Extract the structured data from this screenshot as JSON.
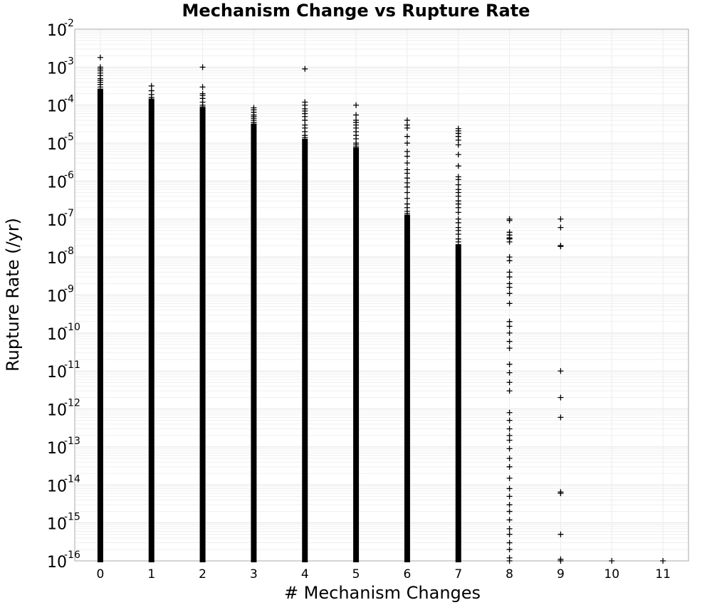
{
  "chart_data": {
    "type": "scatter",
    "title": "Mechanism Change vs Rupture Rate",
    "xlabel": "# Mechanism Changes",
    "ylabel": "Rupture Rate (/yr)",
    "x_ticks": [
      0,
      1,
      2,
      3,
      4,
      5,
      6,
      7,
      8,
      9,
      10,
      11
    ],
    "xlim": [
      -0.5,
      11.5
    ],
    "y_scale": "log",
    "ylim": [
      1e-16,
      0.01
    ],
    "y_tick_exponents": [
      -16,
      -15,
      -14,
      -13,
      -12,
      -11,
      -10,
      -9,
      -8,
      -7,
      -6,
      -5,
      -4,
      -3,
      -2
    ],
    "y_tick_base": "10",
    "marker": "plus",
    "marker_color": "#000000",
    "grid": true,
    "legend": "none",
    "series": [
      {
        "x": 0,
        "dense_range": [
          1e-16,
          0.00025
        ],
        "points": [
          0.0018,
          0.001,
          0.0009,
          0.0008,
          0.0007,
          0.0006,
          0.0005,
          0.00045,
          0.0004,
          0.00035,
          0.0003
        ]
      },
      {
        "x": 1,
        "dense_range": [
          1e-16,
          0.00013
        ],
        "points": [
          0.00032,
          0.00024,
          0.00019,
          0.00016,
          0.000145
        ]
      },
      {
        "x": 2,
        "dense_range": [
          1e-16,
          8e-05
        ],
        "points": [
          0.001,
          0.0003,
          0.0002,
          0.00018,
          0.00015,
          0.00012,
          0.0001,
          9e-05
        ]
      },
      {
        "x": 3,
        "dense_range": [
          1e-16,
          3e-05
        ],
        "points": [
          8.5e-05,
          7.5e-05,
          6.5e-05,
          5.5e-05,
          5e-05,
          4.5e-05,
          4e-05,
          3.5e-05
        ]
      },
      {
        "x": 4,
        "dense_range": [
          1e-16,
          1.2e-05
        ],
        "points": [
          0.0009,
          0.00012,
          0.0001,
          8e-05,
          7e-05,
          6e-05,
          5e-05,
          4e-05,
          3e-05,
          2.5e-05,
          2e-05,
          1.6e-05,
          1.4e-05
        ]
      },
      {
        "x": 5,
        "dense_range": [
          1e-16,
          7e-06
        ],
        "points": [
          0.0001,
          5.5e-05,
          4e-05,
          3.5e-05,
          3e-05,
          2.5e-05,
          2e-05,
          1.6e-05,
          1.3e-05,
          1e-05,
          9e-06,
          8e-06
        ]
      },
      {
        "x": 6,
        "dense_range": [
          1e-16,
          1.2e-07
        ],
        "points": [
          4e-05,
          3e-05,
          2.5e-05,
          1.5e-05,
          1e-05,
          6e-06,
          4.5e-06,
          3e-06,
          2e-06,
          1.6e-06,
          1.2e-06,
          9e-07,
          7e-07,
          5e-07,
          3.5e-07,
          2.5e-07,
          2e-07,
          1.6e-07,
          1.4e-07
        ]
      },
      {
        "x": 7,
        "dense_range": [
          1e-16,
          2e-08
        ],
        "points": [
          2.4e-05,
          2.1e-05,
          1.8e-05,
          1.5e-05,
          1.2e-05,
          9e-06,
          5e-06,
          2.5e-06,
          1.3e-06,
          1.1e-06,
          8e-07,
          6e-07,
          5e-07,
          4e-07,
          3e-07,
          2.5e-07,
          2e-07,
          1.5e-07,
          1e-07,
          8e-08,
          6e-08,
          5e-08,
          4e-08,
          3e-08,
          2.5e-08
        ]
      },
      {
        "x": 8,
        "dense_range": null,
        "points": [
          1e-07,
          9.2e-08,
          4.5e-08,
          3.8e-08,
          3.2e-08,
          3e-08,
          2.5e-08,
          1e-08,
          8e-09,
          4e-09,
          3e-09,
          2e-09,
          1.6e-09,
          1.1e-09,
          6e-10,
          2e-10,
          1.5e-10,
          1e-10,
          6e-11,
          4e-11,
          1.5e-11,
          9e-12,
          5e-12,
          3e-12,
          8e-13,
          5e-13,
          3e-13,
          2e-13,
          1.5e-13,
          9e-14,
          5e-14,
          3e-14,
          1.5e-14,
          8e-15,
          5e-15,
          3e-15,
          2e-15,
          1.2e-15,
          7e-16,
          5e-16,
          3e-16,
          2e-16,
          1.2e-16,
          1e-16
        ]
      },
      {
        "x": 9,
        "dense_range": null,
        "points": [
          1e-07,
          6e-08,
          2e-08,
          1.9e-08,
          1e-11,
          2e-12,
          6e-13,
          6.5e-15,
          6e-15,
          5e-16,
          1.1e-16,
          1e-16
        ]
      },
      {
        "x": 10,
        "dense_range": null,
        "points": [
          1e-16
        ]
      },
      {
        "x": 11,
        "dense_range": null,
        "points": [
          1e-16
        ]
      }
    ]
  }
}
